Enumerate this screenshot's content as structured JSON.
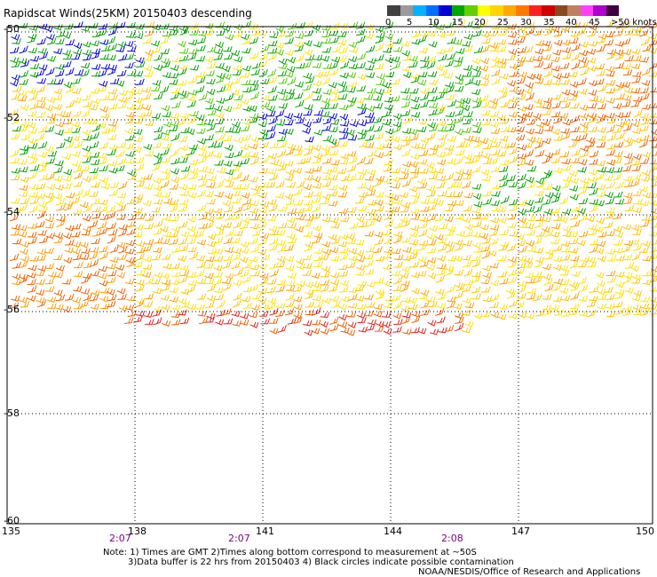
{
  "title": "Rapidscat Winds(25KM) 20150403 descending",
  "legend": {
    "labels": [
      "0",
      "5",
      "10",
      "15",
      "20",
      "25",
      "30",
      "35",
      "40",
      "45",
      ">50 knots"
    ],
    "colors": [
      "#404040",
      "#9a9a9a",
      "#00b4ff",
      "#0070ff",
      "#0000d8",
      "#00a800",
      "#60d000",
      "#ffff00",
      "#ffd400",
      "#ffaa00",
      "#ff7a00",
      "#ff2020",
      "#d00000",
      "#8a4a20",
      "#c08060",
      "#ff40ff",
      "#b000d0",
      "#400040"
    ]
  },
  "axes": {
    "lat_labels": [
      "-50",
      "-52",
      "-54",
      "-56",
      "-58",
      "-60"
    ],
    "lon_labels": [
      "135",
      "138",
      "141",
      "144",
      "147",
      "150"
    ]
  },
  "times": [
    "2:07",
    "2:07",
    "2:08"
  ],
  "notes": {
    "line1": "Note: 1) Times are GMT 2)Times along bottom correspond to measurement at ~50S",
    "line2": "3)Data buffer is 22 hrs from 20150403  4) Black circles indicate possible contamination",
    "line3": "NOAA/NESDIS/Office of Research and Applications"
  }
}
